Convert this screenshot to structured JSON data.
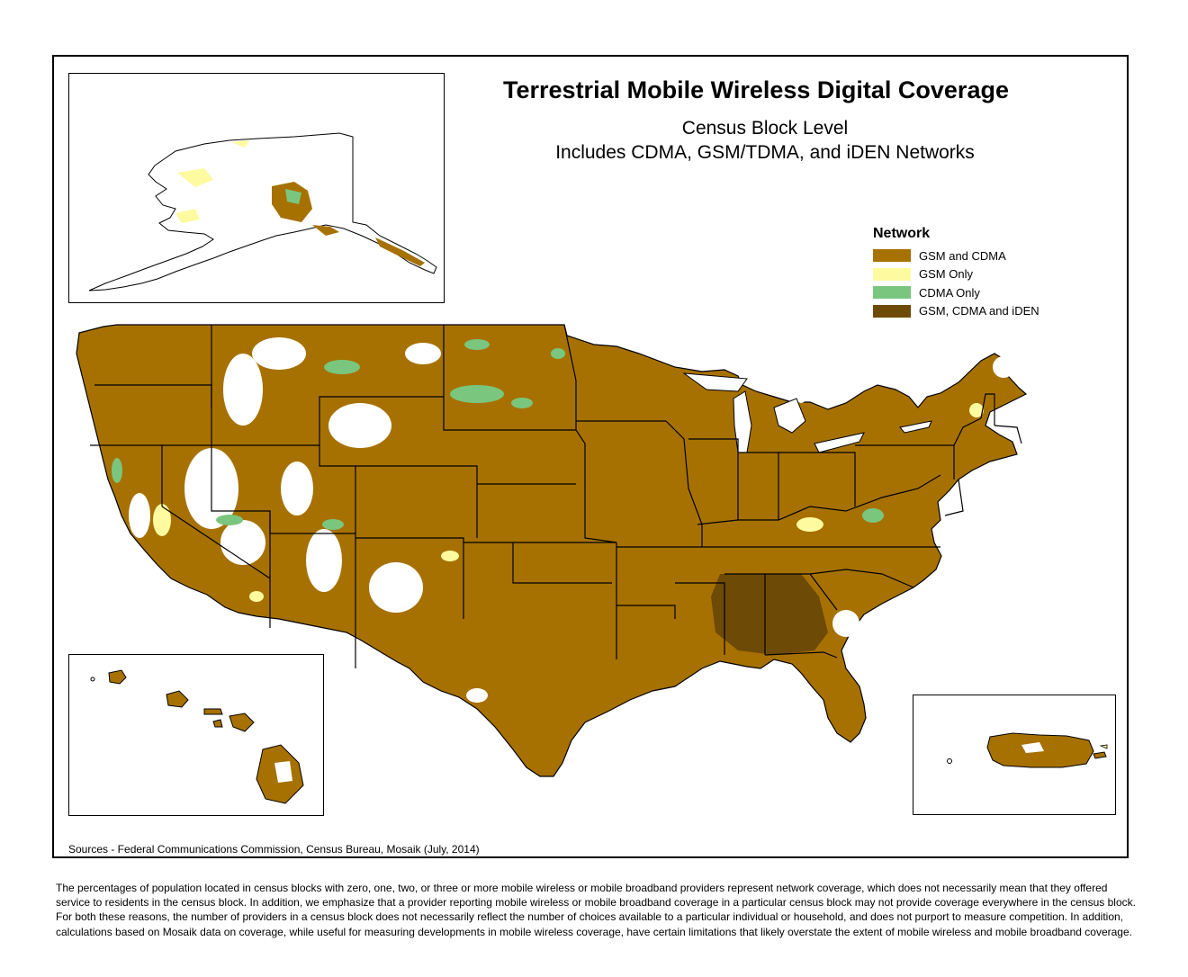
{
  "map": {
    "title": "Terrestrial Mobile Wireless Digital Coverage",
    "subtitle_1": "Census Block Level",
    "subtitle_2": "Includes CDMA, GSM/TDMA, and iDEN Networks",
    "sources": "Sources - Federal Communications Commission, Census Bureau, Mosaik (July, 2014)",
    "insets": [
      "Alaska",
      "Hawaii",
      "Puerto Rico"
    ]
  },
  "legend": {
    "title": "Network",
    "items": [
      {
        "label": "GSM and CDMA",
        "color": "#a67100"
      },
      {
        "label": "GSM Only",
        "color": "#fefaa0"
      },
      {
        "label": "CDMA Only",
        "color": "#7ac67e"
      },
      {
        "label": "GSM, CDMA and iDEN",
        "color": "#6e4a07"
      }
    ]
  },
  "colors": {
    "no_coverage": "#ffffff",
    "boundary": "#000000"
  },
  "footnote": "The percentages of population located in census blocks with zero, one, two, or three or more mobile wireless or mobile broadband providers represent network coverage, which does not necessarily mean that they offered service to residents in the census block. In addition, we emphasize that a provider reporting mobile wireless or mobile broadband coverage in a particular census block may not provide coverage everywhere in the census block. For both these reasons, the number of providers in a census block does not necessarily reflect the number of choices available to a particular individual or household, and does not purport to measure competition. In addition, calculations based on Mosaik data on coverage, while useful for measuring developments in mobile wireless coverage, have certain limitations that likely overstate the extent of mobile wireless and mobile broadband coverage."
}
